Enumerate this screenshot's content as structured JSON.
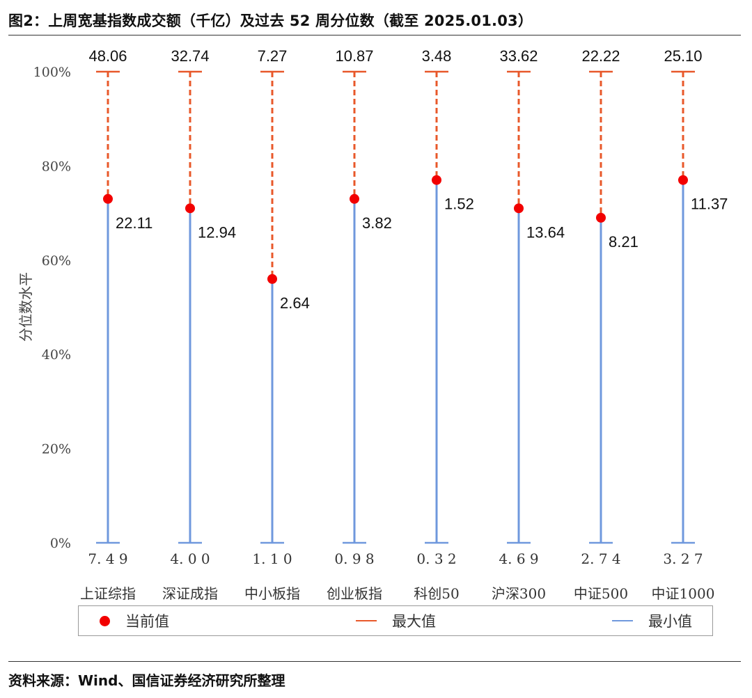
{
  "title": "图2：上周宽基指数成交额（千亿）及过去 52 周分位数（截至 2025.01.03）",
  "source": "资料来源：Wind、国信证券经济研究所整理",
  "colors": {
    "current": "#f20000",
    "max_line": "#e8582a",
    "min_line": "#6f98dd",
    "axis_text": "#444444"
  },
  "legend": {
    "current": "当前值",
    "max": "最大值",
    "min": "最小值"
  },
  "chart_data": {
    "type": "range-dot",
    "ylabel": "分位数水平",
    "ylim": [
      0,
      1
    ],
    "yticks": [
      "0%",
      "20%",
      "40%",
      "60%",
      "80%",
      "100%"
    ],
    "categories": [
      "上证综指",
      "深证成指",
      "中小板指",
      "创业板指",
      "科创50",
      "沪深300",
      "中证500",
      "中证1000"
    ],
    "max_values": [
      "48.06",
      "32.74",
      "7.27",
      "10.87",
      "3.48",
      "33.62",
      "22.22",
      "25.10"
    ],
    "min_values": [
      "7.49",
      "4.00",
      "1.10",
      "0.98",
      "0.32",
      "4.69",
      "2.74",
      "3.27"
    ],
    "current_values": [
      "22.11",
      "12.94",
      "2.64",
      "3.82",
      "1.52",
      "13.64",
      "8.21",
      "11.37"
    ],
    "current_percentile": [
      0.73,
      0.71,
      0.56,
      0.73,
      0.77,
      0.71,
      0.69,
      0.77
    ]
  }
}
